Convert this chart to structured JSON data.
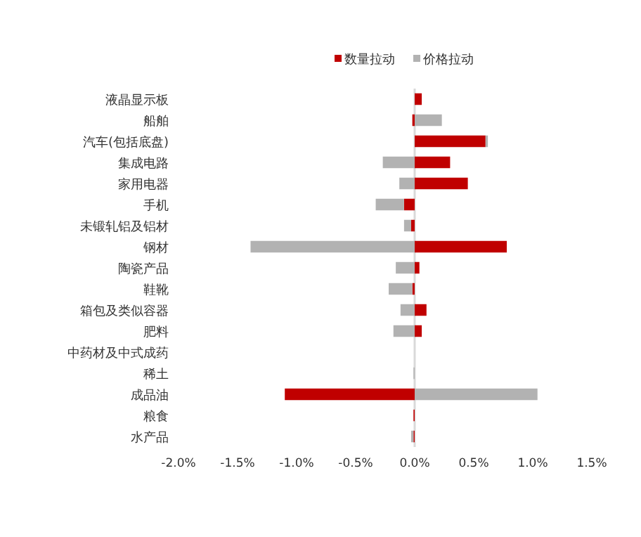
{
  "chart_data": {
    "type": "bar",
    "orientation": "horizontal",
    "stacked": true,
    "categories": [
      "液晶显示板",
      "船舶",
      "汽车(包括底盘)",
      "集成电路",
      "家用电器",
      "手机",
      "未锻轧铝及铝材",
      "钢材",
      "陶瓷产品",
      "鞋靴",
      "箱包及类似容器",
      "肥料",
      "中药材及中式成药",
      "稀土",
      "成品油",
      "粮食",
      "水产品"
    ],
    "series": [
      {
        "name": "数量拉动",
        "color": "#c00000",
        "values": [
          0.06,
          -0.02,
          0.6,
          0.3,
          0.45,
          -0.09,
          -0.03,
          0.78,
          0.04,
          -0.02,
          0.1,
          0.06,
          0,
          0,
          -1.1,
          -0.01,
          -0.01
        ]
      },
      {
        "name": "价格拉动",
        "color": "#b2b2b2",
        "values": [
          0,
          0.23,
          0.02,
          -0.27,
          -0.13,
          -0.24,
          -0.06,
          -1.39,
          -0.16,
          -0.2,
          -0.12,
          -0.18,
          0,
          -0.01,
          1.04,
          0,
          -0.02
        ]
      }
    ],
    "xlim": [
      -2.0,
      1.5
    ],
    "xticks": [
      {
        "value": -2.0,
        "label": "-2.0%"
      },
      {
        "value": -1.5,
        "label": "-1.5%"
      },
      {
        "value": -1.0,
        "label": "-1.0%"
      },
      {
        "value": -0.5,
        "label": "-0.5%"
      },
      {
        "value": 0,
        "label": "0.0%"
      },
      {
        "value": 0.5,
        "label": "0.5%"
      },
      {
        "value": 1.0,
        "label": "1.0%"
      },
      {
        "value": 1.5,
        "label": "1.5%"
      }
    ],
    "legend": "top"
  }
}
